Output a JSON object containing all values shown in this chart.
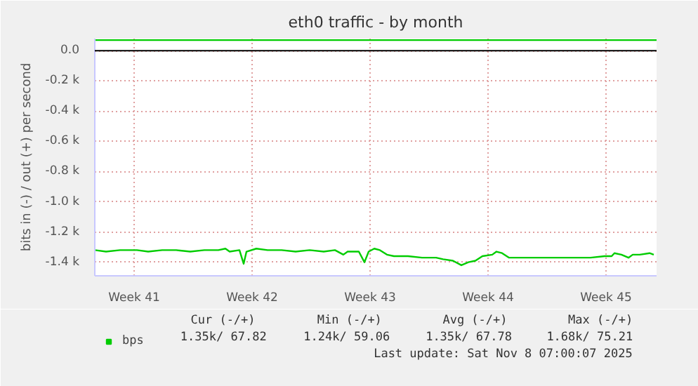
{
  "chart_data": {
    "type": "line",
    "title": "eth0 traffic - by month",
    "ylabel": "bits in (-) / out (+) per second",
    "x": [
      "2025-10-07T04:00",
      "2025-10-07T20:00",
      "2025-10-08T16:00",
      "2025-10-09T16:00",
      "2025-10-10T08:00",
      "2025-10-11T04:00",
      "2025-10-12T00:00",
      "2025-10-12T20:00",
      "2025-10-13T16:00",
      "2025-10-14T12:00",
      "2025-10-14T22:00",
      "2025-10-15T04:00",
      "2025-10-15T18:00",
      "2025-10-16T00:00",
      "2025-10-16T04:00",
      "2025-10-16T18:00",
      "2025-10-17T10:00",
      "2025-10-18T06:00",
      "2025-10-19T02:00",
      "2025-10-19T22:00",
      "2025-10-20T18:00",
      "2025-10-21T10:00",
      "2025-10-21T22:00",
      "2025-10-22T04:00",
      "2025-10-22T20:00",
      "2025-10-23T04:00",
      "2025-10-23T10:00",
      "2025-10-23T18:00",
      "2025-10-24T02:00",
      "2025-10-24T12:00",
      "2025-10-24T22:00",
      "2025-10-25T18:00",
      "2025-10-26T14:00",
      "2025-10-27T10:00",
      "2025-10-27T20:00",
      "2025-10-28T10:00",
      "2025-10-28T22:00",
      "2025-10-29T08:00",
      "2025-10-29T18:00",
      "2025-10-30T04:00",
      "2025-10-30T18:00",
      "2025-10-31T00:00",
      "2025-10-31T08:00",
      "2025-10-31T18:00",
      "2025-11-01T10:00",
      "2025-11-02T06:00",
      "2025-11-03T02:00",
      "2025-11-03T22:00",
      "2025-11-04T18:00",
      "2025-11-05T14:00",
      "2025-11-06T10:00",
      "2025-11-06T20:00",
      "2025-11-07T00:00",
      "2025-11-07T10:00",
      "2025-11-07T20:00",
      "2025-11-08T02:00",
      "2025-11-08T12:00",
      "2025-11-09T02:00",
      "2025-11-09T08:00"
    ],
    "series": [
      {
        "name": "bps",
        "color": "#00cc00",
        "values": [
          -1320,
          -1330,
          -1320,
          -1320,
          -1330,
          -1320,
          -1320,
          -1330,
          -1320,
          -1320,
          -1310,
          -1330,
          -1320,
          -1410,
          -1330,
          -1310,
          -1320,
          -1320,
          -1330,
          -1320,
          -1330,
          -1320,
          -1350,
          -1330,
          -1330,
          -1400,
          -1330,
          -1310,
          -1320,
          -1350,
          -1360,
          -1360,
          -1370,
          -1370,
          -1380,
          -1390,
          -1420,
          -1400,
          -1390,
          -1360,
          -1350,
          -1330,
          -1340,
          -1370,
          -1370,
          -1370,
          -1370,
          -1370,
          -1370,
          -1370,
          -1360,
          -1360,
          -1340,
          -1350,
          -1370,
          -1350,
          -1350,
          -1340,
          -1350
        ]
      },
      {
        "color": "#00cc00",
        "x": [
          "2025-10-07T04:00",
          "2025-11-09T12:00"
        ],
        "values": [
          70,
          70
        ]
      }
    ],
    "xlim": [
      "2025-10-07T04:00",
      "2025-11-09T12:00"
    ],
    "ylim": [
      -1490,
      80
    ],
    "xticks": [
      {
        "value": "2025-10-09T12:00",
        "label": "Week 41"
      },
      {
        "value": "2025-10-16T12:00",
        "label": "Week 42"
      },
      {
        "value": "2025-10-23T12:00",
        "label": "Week 43"
      },
      {
        "value": "2025-10-30T12:00",
        "label": "Week 44"
      },
      {
        "value": "2025-11-06T12:00",
        "label": "Week 45"
      }
    ],
    "yticks": [
      {
        "value": 0,
        "label": "0.0"
      },
      {
        "value": -200,
        "label": "-0.2 k"
      },
      {
        "value": -400,
        "label": "-0.4 k"
      },
      {
        "value": -600,
        "label": "-0.6 k"
      },
      {
        "value": -800,
        "label": "-0.8 k"
      },
      {
        "value": -1000,
        "label": "-1.0 k"
      },
      {
        "value": -1200,
        "label": "-1.2 k"
      },
      {
        "value": -1400,
        "label": "-1.4 k"
      }
    ],
    "ref_lines": [
      {
        "axis": "y",
        "value": 0,
        "color": "#000000"
      }
    ],
    "grid": true,
    "legend": "bottom",
    "annotations": [
      "Cur (-/+)",
      "Min (-/+)",
      "Avg (-/+)",
      "Max (-/+)",
      "1.35k/ 67.82",
      "1.24k/ 59.06",
      "1.35k/ 67.78",
      "1.68k/ 75.21",
      "Last update: Sat Nov  8 07:00:07 2025"
    ]
  }
}
